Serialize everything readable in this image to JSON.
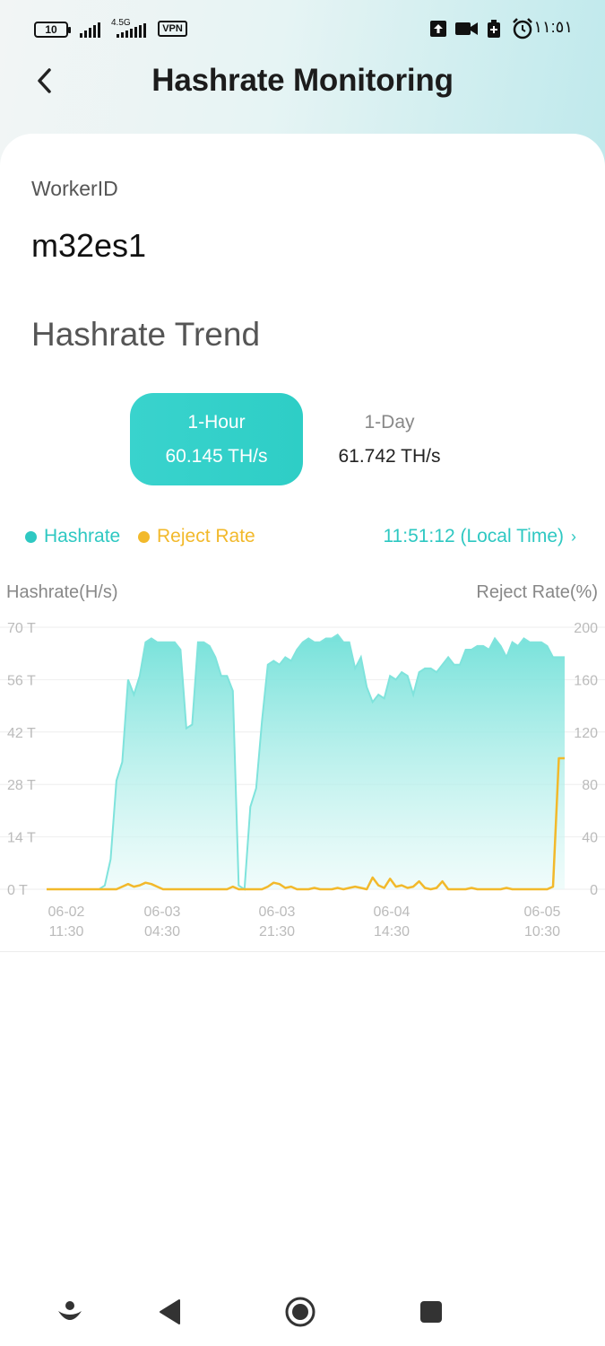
{
  "status_bar": {
    "battery": "10",
    "network": "4.5G",
    "vpn": "VPN",
    "time": "١١:٥١"
  },
  "header": {
    "title": "Hashrate Monitoring",
    "back_icon": "chevron-left-icon"
  },
  "worker": {
    "label": "WorkerID",
    "value": "m32es1"
  },
  "trend": {
    "title": "Hashrate Trend",
    "tabs": [
      {
        "label": "1-Hour",
        "value": "60.145 TH/s",
        "active": true
      },
      {
        "label": "1-Day",
        "value": "61.742 TH/s",
        "active": false
      }
    ]
  },
  "legend": {
    "hashrate": "Hashrate",
    "reject": "Reject Rate",
    "local_time": "11:51:12 (Local Time)",
    "hashrate_color": "#2ec8c2",
    "reject_color": "#f2b92b"
  },
  "chart_data": {
    "type": "area",
    "ylabel_left": "Hashrate(H/s)",
    "ylabel_right": "Reject Rate(%)",
    "y_left_ticks": [
      "70 T",
      "56 T",
      "42 T",
      "28 T",
      "14 T",
      "0 T"
    ],
    "y_right_ticks": [
      "200",
      "160",
      "120",
      "80",
      "40",
      "0"
    ],
    "ylim_left": [
      0,
      70
    ],
    "ylim_right": [
      0,
      200
    ],
    "x_ticks": [
      {
        "date": "06-02",
        "time": "11:30"
      },
      {
        "date": "06-03",
        "time": "04:30"
      },
      {
        "date": "06-03",
        "time": "21:30"
      },
      {
        "date": "06-04",
        "time": "14:30"
      },
      {
        "date": "06-05",
        "time": "10:30"
      }
    ],
    "series": [
      {
        "name": "Hashrate",
        "values": [
          0,
          0,
          0,
          0,
          0,
          0,
          0,
          0,
          0,
          0,
          1,
          8,
          29,
          34,
          56,
          52,
          57,
          66,
          67,
          66,
          66,
          66,
          66,
          64,
          43,
          44,
          66,
          66,
          65,
          62,
          57,
          57,
          53,
          1,
          0,
          22,
          27,
          45,
          60,
          61,
          60,
          62,
          61,
          64,
          66,
          67,
          66,
          66,
          67,
          67,
          68,
          66,
          66,
          59,
          62,
          54,
          50,
          52,
          51,
          57,
          56,
          58,
          57,
          52,
          58,
          59,
          59,
          58,
          60,
          62,
          60,
          60,
          64,
          64,
          65,
          65,
          64,
          67,
          65,
          62,
          66,
          65,
          67,
          66,
          66,
          66,
          65,
          62,
          62,
          62
        ]
      },
      {
        "name": "Reject Rate",
        "values": [
          0,
          0,
          0,
          0,
          0,
          0,
          0,
          0,
          0,
          0,
          0,
          0,
          0,
          2,
          4,
          2,
          3,
          5,
          4,
          2,
          0,
          0,
          0,
          0,
          0,
          0,
          0,
          0,
          0,
          0,
          0,
          0,
          2,
          0,
          0,
          0,
          0,
          0,
          2,
          5,
          4,
          1,
          2,
          0,
          0,
          0,
          1,
          0,
          0,
          0,
          1,
          0,
          1,
          2,
          1,
          0,
          9,
          3,
          1,
          8,
          2,
          3,
          1,
          2,
          6,
          1,
          0,
          1,
          6,
          0,
          0,
          0,
          0,
          1,
          0,
          0,
          0,
          0,
          0,
          1,
          0,
          0,
          0,
          0,
          0,
          0,
          0,
          2,
          100,
          100
        ]
      }
    ]
  },
  "nav": {
    "assistant_icon": "assistant-icon",
    "back_icon": "back-triangle-icon",
    "home_icon": "home-circle-icon",
    "recents_icon": "recents-square-icon"
  }
}
